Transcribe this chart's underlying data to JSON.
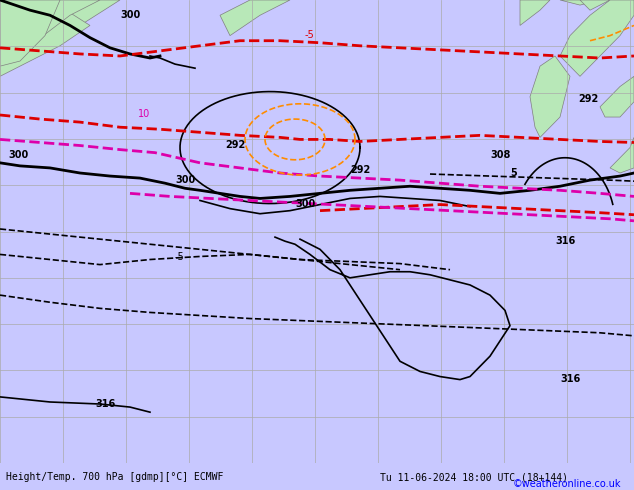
{
  "title_bottom": "Height/Temp. 700 hPa [gdmp][°C] ECMWF",
  "title_right": "Tu 11-06-2024 18:00 UTC (18+144)",
  "copyright": "©weatheronline.co.uk",
  "background_ocean": "#d3d3d3",
  "background_land": "#b8e0b8",
  "grid_color": "#aaaaaa",
  "land_color": "#c8e8c8",
  "sea_color": "#e0e0e0",
  "contour_black_color": "#000000",
  "contour_red_color": "#dd0000",
  "contour_orange_color": "#ff8c00",
  "contour_magenta_color": "#dd00aa",
  "bottom_bar_color": "#c8c8ff",
  "font_size_labels": 7,
  "font_size_bottom": 7
}
